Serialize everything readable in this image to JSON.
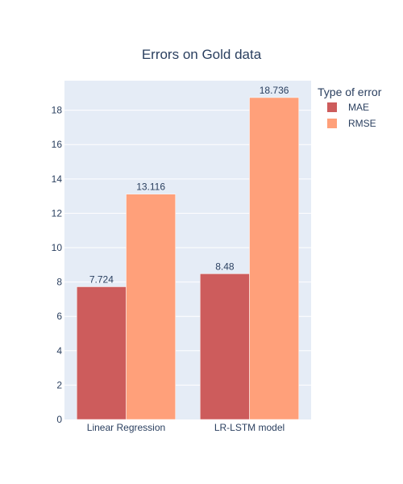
{
  "chart_data": {
    "type": "bar",
    "title": "Errors on Gold data",
    "categories": [
      "Linear Regression",
      "LR-LSTM model"
    ],
    "series": [
      {
        "name": "MAE",
        "values": [
          7.724,
          8.48
        ],
        "labels": [
          "7.724",
          "8.48"
        ],
        "color": "#cd5c5c"
      },
      {
        "name": "RMSE",
        "values": [
          13.116,
          18.736
        ],
        "labels": [
          "13.116",
          "18.736"
        ],
        "color": "#ffa07a"
      }
    ],
    "xlabel": "",
    "ylabel": "",
    "ylim": [
      0,
      19.72
    ],
    "yticks": [
      0,
      2,
      4,
      6,
      8,
      10,
      12,
      14,
      16,
      18
    ],
    "grid": true,
    "legend_title": "Type of error",
    "legend_position": "top-right",
    "plot_background": "#e5ecf6",
    "grid_color": "#ffffff",
    "text_color": "#2a3f5f"
  }
}
